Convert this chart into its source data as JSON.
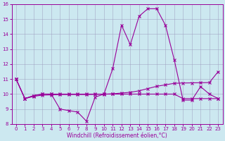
{
  "xlabel": "Windchill (Refroidissement éolien,°C)",
  "x": [
    0,
    1,
    2,
    3,
    4,
    5,
    6,
    7,
    8,
    9,
    10,
    11,
    12,
    13,
    14,
    15,
    16,
    17,
    18,
    19,
    20,
    21,
    22,
    23
  ],
  "line1": [
    11.0,
    9.7,
    9.9,
    10.0,
    10.0,
    9.0,
    8.9,
    8.8,
    8.2,
    9.8,
    10.0,
    11.7,
    14.6,
    13.3,
    15.2,
    15.7,
    15.7,
    14.6,
    12.3,
    9.6,
    9.6,
    10.5,
    10.0,
    9.7
  ],
  "line2": [
    11.0,
    9.7,
    9.9,
    10.0,
    10.0,
    10.0,
    10.0,
    10.0,
    10.0,
    10.0,
    10.0,
    10.0,
    10.0,
    10.0,
    10.0,
    10.0,
    10.0,
    10.0,
    10.0,
    9.7,
    9.7,
    9.7,
    9.7,
    9.7
  ],
  "line3": [
    11.0,
    9.7,
    9.85,
    9.93,
    9.95,
    9.97,
    9.97,
    9.97,
    9.97,
    9.98,
    9.99,
    10.02,
    10.07,
    10.12,
    10.22,
    10.37,
    10.52,
    10.62,
    10.72,
    10.74,
    10.75,
    10.76,
    10.77,
    11.5
  ],
  "color": "#990099",
  "bg_color": "#cce8f0",
  "grid_color": "#9999bb",
  "ylim": [
    8,
    16
  ],
  "xlim": [
    -0.5,
    23.5
  ],
  "yticks": [
    8,
    9,
    10,
    11,
    12,
    13,
    14,
    15,
    16
  ],
  "xticks": [
    0,
    1,
    2,
    3,
    4,
    5,
    6,
    7,
    8,
    9,
    10,
    11,
    12,
    13,
    14,
    15,
    16,
    17,
    18,
    19,
    20,
    21,
    22,
    23
  ],
  "tick_fontsize": 5.0,
  "xlabel_fontsize": 5.5
}
